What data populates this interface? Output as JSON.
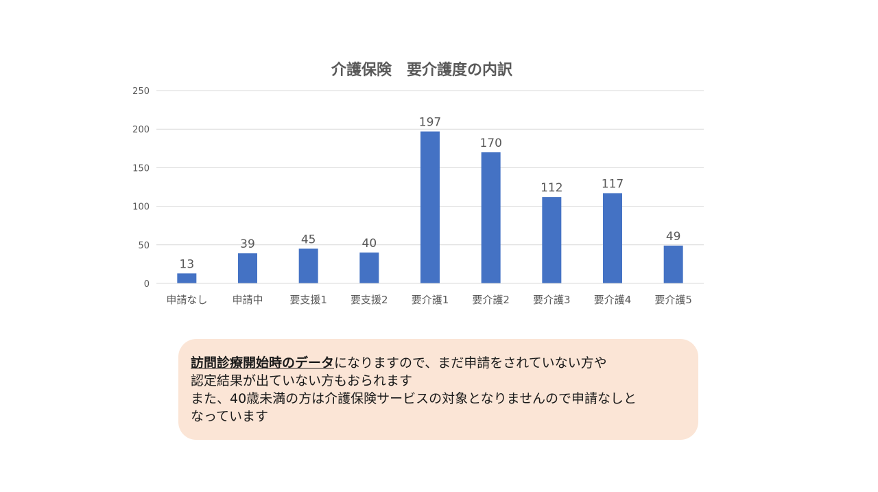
{
  "chart_data": {
    "type": "bar",
    "title": "介護保険　要介護度の内訳",
    "categories": [
      "申請なし",
      "申請中",
      "要支援1",
      "要支援2",
      "要介護1",
      "要介護2",
      "要介護3",
      "要介護4",
      "要介護5"
    ],
    "values": [
      13,
      39,
      45,
      40,
      197,
      170,
      112,
      117,
      49
    ],
    "ylim": [
      0,
      250
    ],
    "yticks": [
      0,
      50,
      100,
      150,
      200,
      250
    ],
    "xlabel": "",
    "ylabel": "",
    "data_labels": true,
    "grid": true,
    "legend": "none",
    "bar_color": "#4472c4"
  },
  "note": {
    "emphasis": "訪問診療開始時のデータ",
    "line1_rest": "になりますので、まだ申請をされていない方や",
    "line2": "認定結果が出ていない方もおられます",
    "line3": "また、40歳未満の方は介護保険サービスの対象となりませんので申請なしと",
    "line4": "なっています"
  },
  "colors": {
    "note_background": "#fbe5d6",
    "grid": "#d9d9d9",
    "text": "#595959"
  }
}
